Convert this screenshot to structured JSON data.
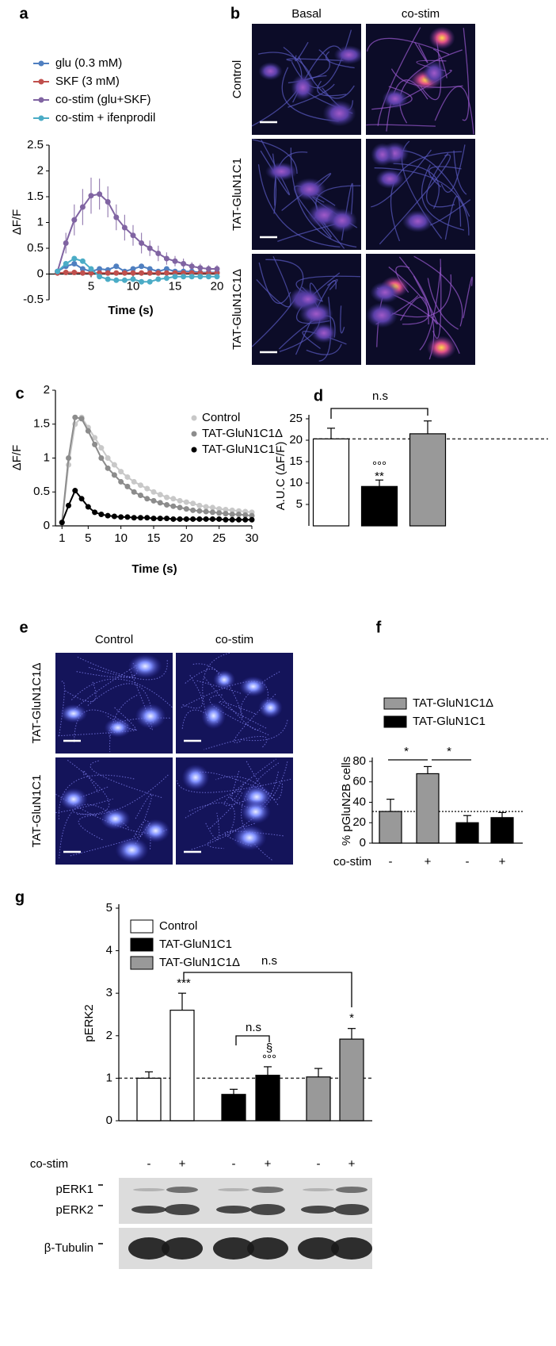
{
  "chart_data": [
    {
      "panel": "a",
      "type": "line",
      "x_label": "Time (s)",
      "y_label": "ΔF/F",
      "x": [
        1,
        2,
        3,
        4,
        5,
        6,
        7,
        8,
        9,
        10,
        11,
        12,
        13,
        14,
        15,
        16,
        17,
        18,
        19,
        20
      ],
      "xlim": [
        0,
        20
      ],
      "xticks": [
        5,
        10,
        15,
        20
      ],
      "ylim": [
        -0.5,
        2.5
      ],
      "yticks": [
        -0.5,
        0,
        0.5,
        1,
        1.5,
        2,
        2.5
      ],
      "series": [
        {
          "name": "glu (0.3 mM)",
          "color": "#4f7fc0",
          "values": [
            0.05,
            0.15,
            0.2,
            0.1,
            0.05,
            0.1,
            0.08,
            0.15,
            0.05,
            0.1,
            0.15,
            0.1,
            0.05,
            0.1,
            0.05,
            0.05,
            0.05,
            0.03,
            0.03,
            0.03
          ]
        },
        {
          "name": "SKF (3 mM)",
          "color": "#c0504d",
          "values": [
            0.02,
            0.03,
            0.03,
            0.02,
            0.02,
            0.02,
            0.02,
            0.02,
            0.02,
            0.02,
            0.02,
            0.02,
            0.02,
            0.02,
            0.02,
            0.02,
            0.02,
            0.02,
            0.02,
            0.02
          ]
        },
        {
          "name": "co-stim (glu+SKF)",
          "color": "#8064a2",
          "values": [
            0.05,
            0.6,
            1.05,
            1.3,
            1.52,
            1.55,
            1.4,
            1.1,
            0.9,
            0.75,
            0.6,
            0.5,
            0.4,
            0.3,
            0.25,
            0.2,
            0.15,
            0.12,
            0.1,
            0.1
          ],
          "errors": [
            0.05,
            0.2,
            0.3,
            0.35,
            0.35,
            0.3,
            0.3,
            0.25,
            0.25,
            0.2,
            0.2,
            0.15,
            0.15,
            0.12,
            0.1,
            0.1,
            0.08,
            0.08,
            0.07,
            0.07
          ]
        },
        {
          "name": "co-stim + ifenprodil",
          "color": "#4bacc6",
          "values": [
            0.05,
            0.2,
            0.3,
            0.25,
            0.1,
            -0.05,
            -0.1,
            -0.12,
            -0.12,
            -0.1,
            -0.15,
            -0.15,
            -0.1,
            -0.08,
            -0.05,
            -0.05,
            -0.05,
            -0.05,
            -0.05,
            -0.05
          ]
        }
      ]
    },
    {
      "panel": "b",
      "type": "image",
      "columns": [
        "Basal",
        "co-stim"
      ],
      "rows": [
        "Control",
        "TAT-GluN1C1",
        "TAT-GluN1C1Δ"
      ]
    },
    {
      "panel": "c",
      "type": "line",
      "x_label": "Time (s)",
      "y_label": "ΔF/F",
      "x": [
        1,
        2,
        3,
        4,
        5,
        6,
        7,
        8,
        9,
        10,
        11,
        12,
        13,
        14,
        15,
        16,
        17,
        18,
        19,
        20,
        21,
        22,
        23,
        24,
        25,
        26,
        27,
        28,
        29,
        30
      ],
      "xlim": [
        0,
        30
      ],
      "xticks": [
        1,
        5,
        10,
        15,
        20,
        25,
        30
      ],
      "ylim": [
        0,
        2
      ],
      "yticks": [
        0,
        0.5,
        1,
        1.5,
        2
      ],
      "series": [
        {
          "name": "Control",
          "color": "#c8c8c8",
          "label_color": "#c0c0c0",
          "values": [
            0.05,
            0.9,
            1.5,
            1.6,
            1.45,
            1.3,
            1.15,
            1.0,
            0.9,
            0.8,
            0.72,
            0.65,
            0.6,
            0.55,
            0.5,
            0.46,
            0.42,
            0.4,
            0.37,
            0.35,
            0.33,
            0.3,
            0.28,
            0.27,
            0.25,
            0.24,
            0.23,
            0.22,
            0.21,
            0.2
          ]
        },
        {
          "name": "TAT-GluN1C1Δ",
          "color": "#8c8c8c",
          "label_color": "#8c8c8c",
          "values": [
            0.05,
            1.0,
            1.6,
            1.58,
            1.4,
            1.2,
            1.0,
            0.85,
            0.75,
            0.65,
            0.58,
            0.5,
            0.45,
            0.4,
            0.37,
            0.34,
            0.31,
            0.29,
            0.27,
            0.25,
            0.23,
            0.22,
            0.21,
            0.2,
            0.19,
            0.18,
            0.17,
            0.17,
            0.16,
            0.15
          ]
        },
        {
          "name": "TAT-GluN1C1",
          "color": "#000000",
          "label_color": "#000000",
          "values": [
            0.05,
            0.3,
            0.52,
            0.4,
            0.28,
            0.2,
            0.17,
            0.15,
            0.14,
            0.13,
            0.13,
            0.12,
            0.12,
            0.12,
            0.11,
            0.11,
            0.11,
            0.1,
            0.1,
            0.1,
            0.1,
            0.1,
            0.1,
            0.1,
            0.1,
            0.09,
            0.09,
            0.09,
            0.09,
            0.09
          ]
        }
      ]
    },
    {
      "panel": "d",
      "type": "bar",
      "y_label": "A.U.C (ΔF/F)",
      "values": [
        20.3,
        9.2,
        21.5
      ],
      "errors": [
        2.5,
        1.5,
        3
      ],
      "colors": [
        "#ffffff",
        "#000000",
        "#999999"
      ],
      "ylim": [
        0,
        25
      ],
      "yticks": [
        5,
        10,
        15,
        20,
        25
      ],
      "annotations": [
        "n.s",
        "°°°",
        "**"
      ]
    },
    {
      "panel": "e",
      "type": "image",
      "columns": [
        "Control",
        "co-stim"
      ],
      "rows": [
        "TAT-GluN1C1Δ",
        "TAT-GluN1C1"
      ]
    },
    {
      "panel": "f",
      "type": "bar",
      "y_label": "% pGluN2B cells",
      "categories": [
        "-",
        "+"
      ],
      "category_axis_label": "co-stim",
      "series": [
        {
          "name": "TAT-GluN1C1Δ",
          "color": "#999999",
          "label_color": "#aaaaaa",
          "values": [
            31,
            68
          ],
          "errors": [
            12,
            7
          ]
        },
        {
          "name": "TAT-GluN1C1",
          "color": "#000000",
          "values": [
            20,
            25
          ],
          "errors": [
            7,
            5
          ]
        }
      ],
      "ylim": [
        0,
        80
      ],
      "yticks": [
        0,
        20,
        40,
        60,
        80
      ],
      "annotations": [
        "*",
        "*"
      ]
    },
    {
      "panel": "g",
      "type": "bar",
      "y_label": "pERK2",
      "categories": [
        "-",
        "+"
      ],
      "category_axis_label": "co-stim",
      "series": [
        {
          "name": "Control",
          "color": "#ffffff",
          "values": [
            1,
            2.6
          ],
          "errors": [
            0.15,
            0.4
          ]
        },
        {
          "name": "TAT-GluN1C1",
          "color": "#000000",
          "values": [
            0.62,
            1.07
          ],
          "errors": [
            0.12,
            0.2
          ]
        },
        {
          "name": "TAT-GluN1C1Δ",
          "color": "#999999",
          "label_color": "#aaaaaa",
          "values": [
            1.03,
            1.92
          ],
          "errors": [
            0.2,
            0.25
          ]
        }
      ],
      "ylim": [
        0,
        5
      ],
      "yticks": [
        0,
        1,
        2,
        3,
        4,
        5
      ],
      "annotations": [
        "n.s",
        "***",
        "n.s",
        "§",
        "°°°",
        "*"
      ],
      "blot_labels": [
        "pERK1",
        "pERK2",
        "β-Tubulin"
      ]
    }
  ]
}
